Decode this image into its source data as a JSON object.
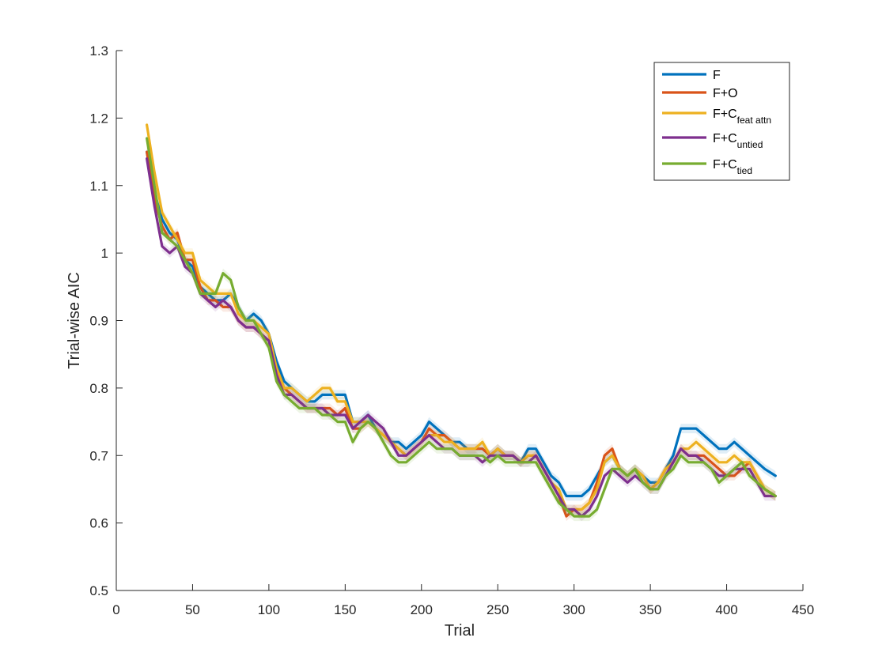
{
  "chart_data": {
    "type": "line",
    "title": "",
    "xlabel": "Trial",
    "ylabel": "Trial-wise AIC",
    "xlim": [
      0,
      450
    ],
    "ylim": [
      0.5,
      1.3
    ],
    "xticks": [
      0,
      50,
      100,
      150,
      200,
      250,
      300,
      350,
      400,
      450
    ],
    "yticks": [
      0.5,
      0.6,
      0.7,
      0.8,
      0.9,
      1.0,
      1.1,
      1.2,
      1.3
    ],
    "xtick_labels": [
      "0",
      "50",
      "100",
      "150",
      "200",
      "250",
      "300",
      "350",
      "400",
      "450"
    ],
    "ytick_labels": [
      "0.5",
      "0.6",
      "0.7",
      "0.8",
      "0.9",
      "1",
      "1.1",
      "1.2",
      "1.3"
    ],
    "grid": false,
    "legend_position": "top-right",
    "legend": [
      {
        "base": "F",
        "sub": ""
      },
      {
        "base": "F+O",
        "sub": ""
      },
      {
        "base": "F+C",
        "sub": "feat attn"
      },
      {
        "base": "F+C",
        "sub": "untied"
      },
      {
        "base": "F+C",
        "sub": "tied"
      }
    ],
    "series": [
      {
        "name": "F",
        "color": "#0072BD",
        "x": [
          20,
          25,
          30,
          35,
          40,
          45,
          50,
          55,
          60,
          65,
          70,
          75,
          80,
          85,
          90,
          95,
          100,
          105,
          110,
          115,
          120,
          125,
          130,
          135,
          140,
          145,
          150,
          155,
          160,
          165,
          170,
          175,
          180,
          185,
          190,
          195,
          200,
          205,
          210,
          215,
          220,
          225,
          230,
          235,
          240,
          245,
          250,
          255,
          260,
          265,
          270,
          275,
          280,
          285,
          290,
          295,
          300,
          305,
          310,
          315,
          320,
          325,
          330,
          335,
          340,
          345,
          350,
          355,
          360,
          365,
          370,
          375,
          380,
          385,
          390,
          395,
          400,
          405,
          410,
          415,
          420,
          425,
          432
        ],
        "y": [
          1.15,
          1.09,
          1.05,
          1.03,
          1.02,
          0.99,
          0.98,
          0.95,
          0.94,
          0.93,
          0.93,
          0.94,
          0.92,
          0.9,
          0.91,
          0.9,
          0.88,
          0.84,
          0.81,
          0.8,
          0.79,
          0.78,
          0.78,
          0.79,
          0.79,
          0.79,
          0.79,
          0.75,
          0.75,
          0.76,
          0.74,
          0.73,
          0.72,
          0.72,
          0.71,
          0.72,
          0.73,
          0.75,
          0.74,
          0.73,
          0.72,
          0.72,
          0.71,
          0.71,
          0.71,
          0.7,
          0.71,
          0.7,
          0.7,
          0.69,
          0.71,
          0.71,
          0.69,
          0.67,
          0.66,
          0.64,
          0.64,
          0.64,
          0.65,
          0.67,
          0.69,
          0.7,
          0.68,
          0.67,
          0.68,
          0.67,
          0.66,
          0.66,
          0.68,
          0.7,
          0.74,
          0.74,
          0.74,
          0.73,
          0.72,
          0.71,
          0.71,
          0.72,
          0.71,
          0.7,
          0.69,
          0.68,
          0.67
        ]
      },
      {
        "name": "F+O",
        "color": "#D95319",
        "x": [
          20,
          25,
          30,
          35,
          40,
          45,
          50,
          55,
          60,
          65,
          70,
          75,
          80,
          85,
          90,
          95,
          100,
          105,
          110,
          115,
          120,
          125,
          130,
          135,
          140,
          145,
          150,
          155,
          160,
          165,
          170,
          175,
          180,
          185,
          190,
          195,
          200,
          205,
          210,
          215,
          220,
          225,
          230,
          235,
          240,
          245,
          250,
          255,
          260,
          265,
          270,
          275,
          280,
          285,
          290,
          295,
          300,
          305,
          310,
          315,
          320,
          325,
          330,
          335,
          340,
          345,
          350,
          355,
          360,
          365,
          370,
          375,
          380,
          385,
          390,
          395,
          400,
          405,
          410,
          415,
          420,
          425,
          432
        ],
        "y": [
          1.15,
          1.08,
          1.04,
          1.02,
          1.03,
          0.99,
          0.99,
          0.95,
          0.93,
          0.93,
          0.92,
          0.92,
          0.9,
          0.89,
          0.89,
          0.88,
          0.87,
          0.83,
          0.8,
          0.79,
          0.78,
          0.77,
          0.77,
          0.77,
          0.77,
          0.76,
          0.77,
          0.74,
          0.74,
          0.75,
          0.74,
          0.73,
          0.72,
          0.71,
          0.7,
          0.71,
          0.72,
          0.74,
          0.73,
          0.73,
          0.72,
          0.71,
          0.71,
          0.71,
          0.71,
          0.7,
          0.71,
          0.7,
          0.7,
          0.69,
          0.7,
          0.7,
          0.68,
          0.66,
          0.64,
          0.61,
          0.62,
          0.62,
          0.63,
          0.66,
          0.7,
          0.71,
          0.68,
          0.67,
          0.68,
          0.67,
          0.65,
          0.66,
          0.68,
          0.69,
          0.71,
          0.7,
          0.7,
          0.7,
          0.69,
          0.68,
          0.67,
          0.67,
          0.68,
          0.69,
          0.67,
          0.65,
          0.64
        ]
      },
      {
        "name": "F+C feat attn",
        "color": "#EDB120",
        "x": [
          20,
          25,
          30,
          35,
          40,
          45,
          50,
          55,
          60,
          65,
          70,
          75,
          80,
          85,
          90,
          95,
          100,
          105,
          110,
          115,
          120,
          125,
          130,
          135,
          140,
          145,
          150,
          155,
          160,
          165,
          170,
          175,
          180,
          185,
          190,
          195,
          200,
          205,
          210,
          215,
          220,
          225,
          230,
          235,
          240,
          245,
          250,
          255,
          260,
          265,
          270,
          275,
          280,
          285,
          290,
          295,
          300,
          305,
          310,
          315,
          320,
          325,
          330,
          335,
          340,
          345,
          350,
          355,
          360,
          365,
          370,
          375,
          380,
          385,
          390,
          395,
          400,
          405,
          410,
          415,
          420,
          425,
          432
        ],
        "y": [
          1.19,
          1.12,
          1.06,
          1.04,
          1.02,
          1.0,
          1.0,
          0.96,
          0.95,
          0.94,
          0.94,
          0.94,
          0.91,
          0.9,
          0.9,
          0.89,
          0.88,
          0.83,
          0.8,
          0.8,
          0.79,
          0.78,
          0.79,
          0.8,
          0.8,
          0.78,
          0.78,
          0.75,
          0.75,
          0.75,
          0.74,
          0.73,
          0.72,
          0.71,
          0.7,
          0.71,
          0.72,
          0.73,
          0.73,
          0.72,
          0.72,
          0.71,
          0.71,
          0.71,
          0.72,
          0.7,
          0.71,
          0.7,
          0.7,
          0.69,
          0.7,
          0.7,
          0.68,
          0.66,
          0.65,
          0.62,
          0.62,
          0.62,
          0.63,
          0.65,
          0.69,
          0.7,
          0.68,
          0.67,
          0.68,
          0.67,
          0.65,
          0.66,
          0.68,
          0.69,
          0.71,
          0.71,
          0.72,
          0.71,
          0.7,
          0.69,
          0.69,
          0.7,
          0.69,
          0.69,
          0.67,
          0.65,
          0.64
        ]
      },
      {
        "name": "F+C untied",
        "color": "#7E2F8E",
        "x": [
          20,
          25,
          30,
          35,
          40,
          45,
          50,
          55,
          60,
          65,
          70,
          75,
          80,
          85,
          90,
          95,
          100,
          105,
          110,
          115,
          120,
          125,
          130,
          135,
          140,
          145,
          150,
          155,
          160,
          165,
          170,
          175,
          180,
          185,
          190,
          195,
          200,
          205,
          210,
          215,
          220,
          225,
          230,
          235,
          240,
          245,
          250,
          255,
          260,
          265,
          270,
          275,
          280,
          285,
          290,
          295,
          300,
          305,
          310,
          315,
          320,
          325,
          330,
          335,
          340,
          345,
          350,
          355,
          360,
          365,
          370,
          375,
          380,
          385,
          390,
          395,
          400,
          405,
          410,
          415,
          420,
          425,
          432
        ],
        "y": [
          1.14,
          1.07,
          1.01,
          1.0,
          1.01,
          0.98,
          0.97,
          0.94,
          0.93,
          0.92,
          0.93,
          0.92,
          0.9,
          0.89,
          0.89,
          0.88,
          0.87,
          0.82,
          0.79,
          0.79,
          0.78,
          0.77,
          0.77,
          0.77,
          0.76,
          0.76,
          0.76,
          0.74,
          0.75,
          0.76,
          0.75,
          0.74,
          0.72,
          0.7,
          0.7,
          0.71,
          0.72,
          0.73,
          0.72,
          0.71,
          0.71,
          0.7,
          0.7,
          0.7,
          0.69,
          0.7,
          0.7,
          0.7,
          0.7,
          0.69,
          0.69,
          0.7,
          0.68,
          0.66,
          0.64,
          0.62,
          0.62,
          0.61,
          0.62,
          0.64,
          0.67,
          0.68,
          0.67,
          0.66,
          0.67,
          0.66,
          0.65,
          0.65,
          0.67,
          0.69,
          0.71,
          0.7,
          0.7,
          0.69,
          0.68,
          0.67,
          0.67,
          0.68,
          0.68,
          0.68,
          0.66,
          0.64,
          0.64
        ]
      },
      {
        "name": "F+C tied",
        "color": "#77AC30",
        "x": [
          20,
          25,
          30,
          35,
          40,
          45,
          50,
          55,
          60,
          65,
          70,
          75,
          80,
          85,
          90,
          95,
          100,
          105,
          110,
          115,
          120,
          125,
          130,
          135,
          140,
          145,
          150,
          155,
          160,
          165,
          170,
          175,
          180,
          185,
          190,
          195,
          200,
          205,
          210,
          215,
          220,
          225,
          230,
          235,
          240,
          245,
          250,
          255,
          260,
          265,
          270,
          275,
          280,
          285,
          290,
          295,
          300,
          305,
          310,
          315,
          320,
          325,
          330,
          335,
          340,
          345,
          350,
          355,
          360,
          365,
          370,
          375,
          380,
          385,
          390,
          395,
          400,
          405,
          410,
          415,
          420,
          425,
          432
        ],
        "y": [
          1.17,
          1.1,
          1.03,
          1.02,
          1.01,
          0.99,
          0.97,
          0.94,
          0.94,
          0.94,
          0.97,
          0.96,
          0.92,
          0.9,
          0.9,
          0.88,
          0.86,
          0.81,
          0.79,
          0.78,
          0.77,
          0.77,
          0.77,
          0.76,
          0.76,
          0.75,
          0.75,
          0.72,
          0.74,
          0.75,
          0.74,
          0.72,
          0.7,
          0.69,
          0.69,
          0.7,
          0.71,
          0.72,
          0.71,
          0.71,
          0.71,
          0.7,
          0.7,
          0.7,
          0.7,
          0.69,
          0.7,
          0.69,
          0.69,
          0.69,
          0.69,
          0.69,
          0.67,
          0.65,
          0.63,
          0.62,
          0.61,
          0.61,
          0.61,
          0.62,
          0.65,
          0.68,
          0.68,
          0.67,
          0.68,
          0.66,
          0.65,
          0.65,
          0.67,
          0.68,
          0.7,
          0.69,
          0.69,
          0.69,
          0.68,
          0.66,
          0.67,
          0.68,
          0.69,
          0.67,
          0.66,
          0.65,
          0.64
        ]
      }
    ]
  }
}
